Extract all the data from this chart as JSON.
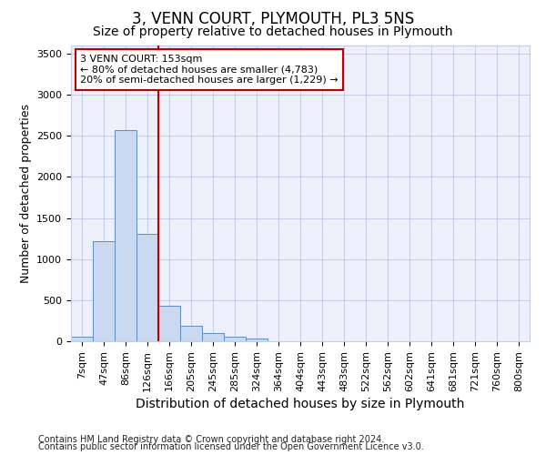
{
  "title": "3, VENN COURT, PLYMOUTH, PL3 5NS",
  "subtitle": "Size of property relative to detached houses in Plymouth",
  "xlabel": "Distribution of detached houses by size in Plymouth",
  "ylabel": "Number of detached properties",
  "categories": [
    "7sqm",
    "47sqm",
    "86sqm",
    "126sqm",
    "166sqm",
    "205sqm",
    "245sqm",
    "285sqm",
    "324sqm",
    "364sqm",
    "404sqm",
    "443sqm",
    "483sqm",
    "522sqm",
    "562sqm",
    "602sqm",
    "641sqm",
    "681sqm",
    "721sqm",
    "760sqm",
    "800sqm"
  ],
  "values": [
    50,
    1220,
    2570,
    1310,
    430,
    185,
    100,
    50,
    30,
    0,
    0,
    0,
    0,
    0,
    0,
    0,
    0,
    0,
    0,
    0,
    0
  ],
  "bar_color": "#cad9f0",
  "bar_edge_color": "#5b8ec4",
  "vline_color": "#c00000",
  "annotation_line1": "3 VENN COURT: 153sqm",
  "annotation_line2": "← 80% of detached houses are smaller (4,783)",
  "annotation_line3": "20% of semi-detached houses are larger (1,229) →",
  "annotation_box_color": "#ffffff",
  "annotation_box_edge": "#c00000",
  "ylim": [
    0,
    3600
  ],
  "yticks": [
    0,
    500,
    1000,
    1500,
    2000,
    2500,
    3000,
    3500
  ],
  "background_color": "#edf0fb",
  "grid_color": "#c5cce8",
  "footer1": "Contains HM Land Registry data © Crown copyright and database right 2024.",
  "footer2": "Contains public sector information licensed under the Open Government Licence v3.0.",
  "title_fontsize": 12,
  "subtitle_fontsize": 10,
  "xlabel_fontsize": 10,
  "ylabel_fontsize": 9,
  "tick_fontsize": 8,
  "annotation_fontsize": 8,
  "footer_fontsize": 7
}
